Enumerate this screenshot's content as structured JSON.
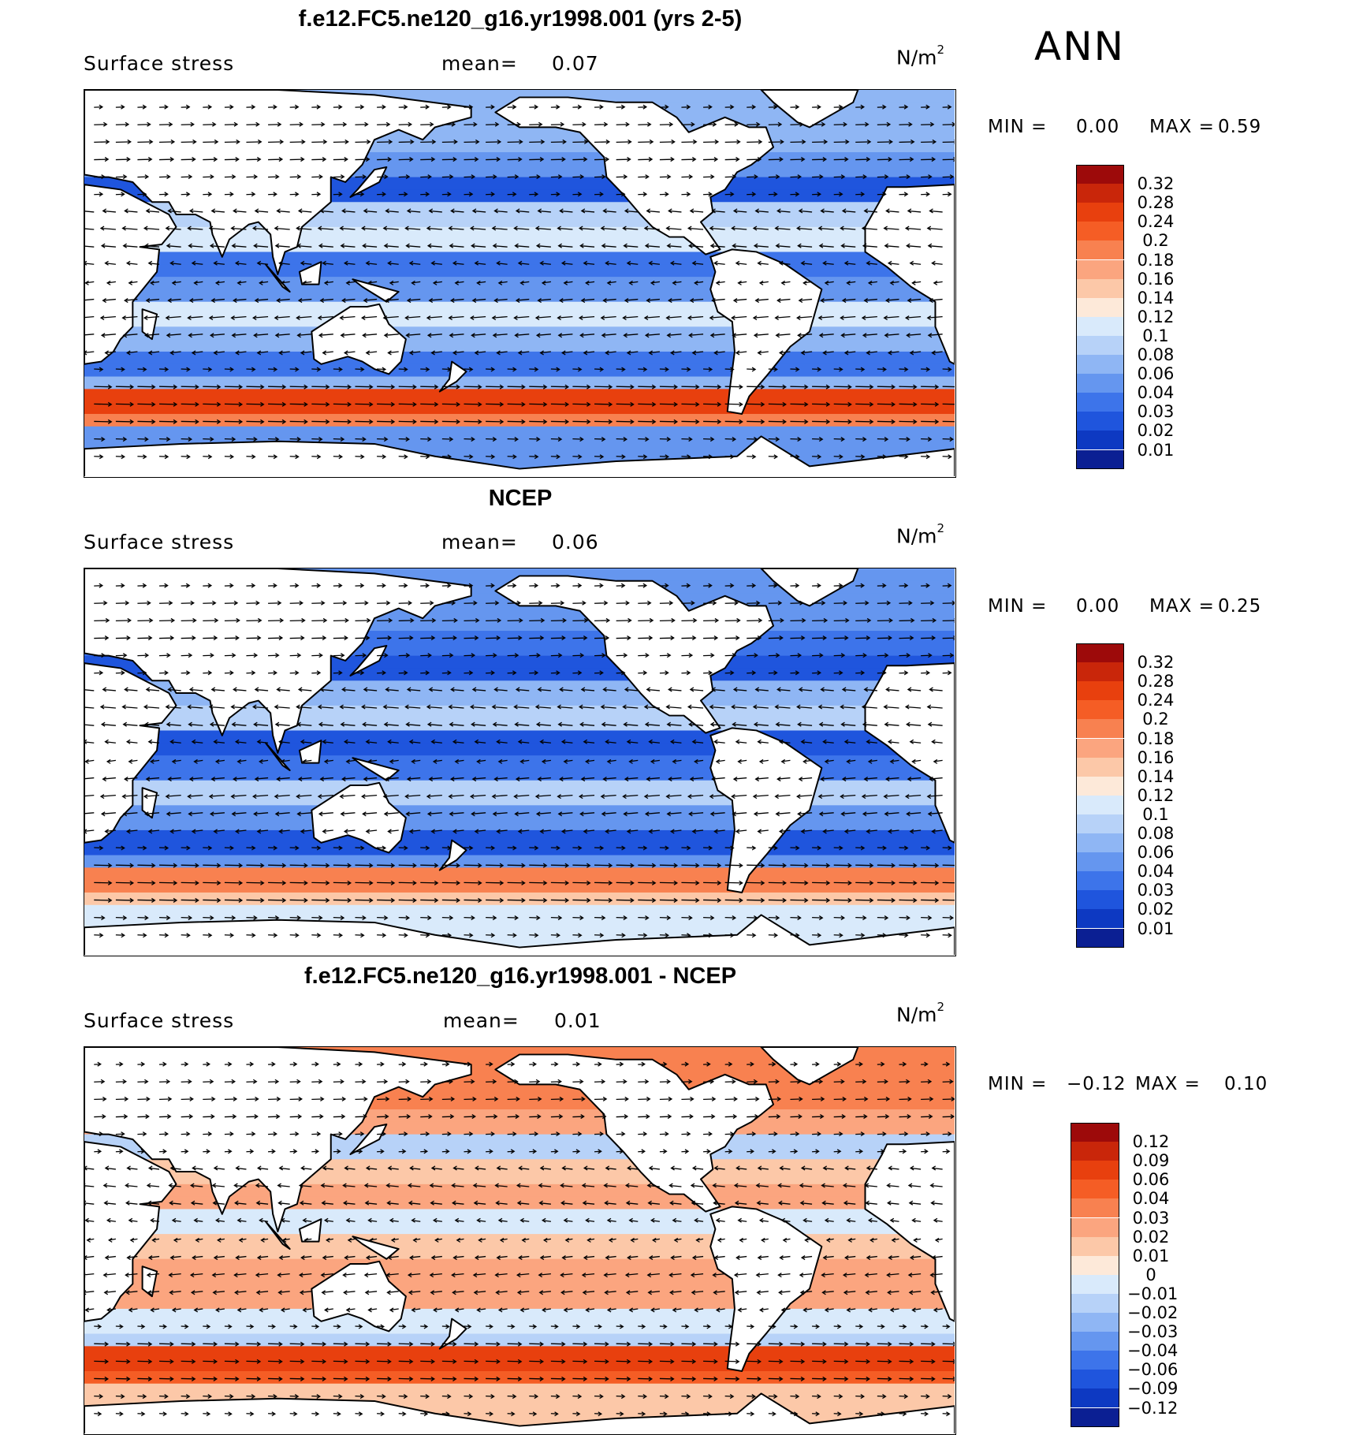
{
  "season": "ANN",
  "colors": {
    "warm": [
      "#fde9d9",
      "#fcc8a8",
      "#fba57f",
      "#f88150",
      "#f55d25",
      "#e8400e",
      "#c9260a",
      "#9d0a0a"
    ],
    "cool": [
      "#d9eafb",
      "#b7d2f8",
      "#8fb6f4",
      "#6596ef",
      "#3d74ea",
      "#1f55dd",
      "#0d39c2",
      "#0b1f93"
    ],
    "land": "#ffffff",
    "coast": "#000000"
  },
  "panels": [
    {
      "title": "f.e12.FC5.ne120_g16.yr1998.001 (yrs 2-5)",
      "variable": "Surface stress",
      "mean_label": "mean=",
      "mean_value": "0.07",
      "units_base": "N/m",
      "units_exp": "2",
      "min_label": "MIN =",
      "min_value": "0.00",
      "max_label": "MAX =",
      "max_value": "0.59",
      "colorbar": {
        "labels": [
          "0.32",
          "0.28",
          "0.24",
          "0.2",
          "0.18",
          "0.16",
          "0.14",
          "0.12",
          "0.1",
          "0.08",
          "0.06",
          "0.04",
          "0.03",
          "0.02",
          "0.01"
        ],
        "colors": [
          "#9d0a0a",
          "#c9260a",
          "#e8400e",
          "#f55d25",
          "#f88150",
          "#fba57f",
          "#fcc8a8",
          "#fde9d9",
          "#d9eafb",
          "#b7d2f8",
          "#8fb6f4",
          "#6596ef",
          "#3d74ea",
          "#1f55dd",
          "#0d39c2",
          "#0b1f93"
        ]
      }
    },
    {
      "title": "NCEP",
      "variable": "Surface stress",
      "mean_label": "mean=",
      "mean_value": "0.06",
      "units_base": "N/m",
      "units_exp": "2",
      "min_label": "MIN =",
      "min_value": "0.00",
      "max_label": "MAX =",
      "max_value": "0.25",
      "colorbar": {
        "labels": [
          "0.32",
          "0.28",
          "0.24",
          "0.2",
          "0.18",
          "0.16",
          "0.14",
          "0.12",
          "0.1",
          "0.08",
          "0.06",
          "0.04",
          "0.03",
          "0.02",
          "0.01"
        ],
        "colors": [
          "#9d0a0a",
          "#c9260a",
          "#e8400e",
          "#f55d25",
          "#f88150",
          "#fba57f",
          "#fcc8a8",
          "#fde9d9",
          "#d9eafb",
          "#b7d2f8",
          "#8fb6f4",
          "#6596ef",
          "#3d74ea",
          "#1f55dd",
          "#0d39c2",
          "#0b1f93"
        ]
      }
    },
    {
      "title": "f.e12.FC5.ne120_g16.yr1998.001 - NCEP",
      "variable": "Surface stress",
      "mean_label": "mean=",
      "mean_value": "0.01",
      "units_base": "N/m",
      "units_exp": "2",
      "min_label": "MIN =",
      "min_value": "−0.12",
      "max_label": "MAX =",
      "max_value": "0.10",
      "colorbar": {
        "labels": [
          "0.12",
          "0.09",
          "0.06",
          "0.04",
          "0.03",
          "0.02",
          "0.01",
          "0",
          "−0.01",
          "−0.02",
          "−0.03",
          "−0.04",
          "−0.06",
          "−0.09",
          "−0.12"
        ],
        "colors": [
          "#9d0a0a",
          "#c9260a",
          "#e8400e",
          "#f55d25",
          "#f88150",
          "#fba57f",
          "#fcc8a8",
          "#fde9d9",
          "#d9eafb",
          "#b7d2f8",
          "#8fb6f4",
          "#6596ef",
          "#3d74ea",
          "#1f55dd",
          "#0d39c2",
          "#0b1f93"
        ]
      }
    }
  ],
  "chart_data": [
    {
      "type": "heatmap",
      "title": "f.e12.FC5.ne120_g16.yr1998.001 (yrs 2-5)",
      "variable": "Surface stress",
      "units": "N/m2",
      "season": "ANN",
      "mean": 0.07,
      "min": 0.0,
      "max": 0.59,
      "levels": [
        0.01,
        0.02,
        0.03,
        0.04,
        0.06,
        0.08,
        0.1,
        0.12,
        0.14,
        0.16,
        0.18,
        0.2,
        0.24,
        0.28,
        0.32
      ],
      "overlay": "wind stress vectors",
      "zonal_bands": [
        {
          "lat": 55,
          "value": 0.06
        },
        {
          "lat": 45,
          "value": 0.04
        },
        {
          "lat": 35,
          "value": 0.02
        },
        {
          "lat": 25,
          "value": 0.08
        },
        {
          "lat": 15,
          "value": 0.1
        },
        {
          "lat": 5,
          "value": 0.03
        },
        {
          "lat": -5,
          "value": 0.04
        },
        {
          "lat": -15,
          "value": 0.1
        },
        {
          "lat": -25,
          "value": 0.06
        },
        {
          "lat": -35,
          "value": 0.03
        },
        {
          "lat": -42,
          "value": 0.06
        },
        {
          "lat": -50,
          "value": 0.24
        },
        {
          "lat": -58,
          "value": 0.18
        },
        {
          "lat": -65,
          "value": 0.04
        }
      ]
    },
    {
      "type": "heatmap",
      "title": "NCEP",
      "variable": "Surface stress",
      "units": "N/m2",
      "season": "ANN",
      "mean": 0.06,
      "min": 0.0,
      "max": 0.25,
      "levels": [
        0.01,
        0.02,
        0.03,
        0.04,
        0.06,
        0.08,
        0.1,
        0.12,
        0.14,
        0.16,
        0.18,
        0.2,
        0.24,
        0.28,
        0.32
      ],
      "overlay": "wind stress vectors",
      "zonal_bands": [
        {
          "lat": 55,
          "value": 0.04
        },
        {
          "lat": 45,
          "value": 0.03
        },
        {
          "lat": 35,
          "value": 0.02
        },
        {
          "lat": 25,
          "value": 0.06
        },
        {
          "lat": 15,
          "value": 0.08
        },
        {
          "lat": 5,
          "value": 0.02
        },
        {
          "lat": -5,
          "value": 0.03
        },
        {
          "lat": -15,
          "value": 0.08
        },
        {
          "lat": -25,
          "value": 0.04
        },
        {
          "lat": -35,
          "value": 0.02
        },
        {
          "lat": -42,
          "value": 0.04
        },
        {
          "lat": -50,
          "value": 0.18
        },
        {
          "lat": -58,
          "value": 0.14
        },
        {
          "lat": -65,
          "value": 0.1
        }
      ]
    },
    {
      "type": "heatmap",
      "title": "f.e12.FC5.ne120_g16.yr1998.001 - NCEP",
      "variable": "Surface stress",
      "units": "N/m2",
      "season": "ANN",
      "mean": 0.01,
      "min": -0.12,
      "max": 0.1,
      "levels": [
        -0.12,
        -0.09,
        -0.06,
        -0.04,
        -0.03,
        -0.02,
        -0.01,
        0,
        0.01,
        0.02,
        0.03,
        0.04,
        0.06,
        0.09,
        0.12
      ],
      "overlay": "wind stress difference vectors",
      "zonal_bands": [
        {
          "lat": 55,
          "value": 0.03
        },
        {
          "lat": 45,
          "value": 0.02
        },
        {
          "lat": 35,
          "value": -0.02
        },
        {
          "lat": 25,
          "value": 0.01
        },
        {
          "lat": 15,
          "value": 0.02
        },
        {
          "lat": 5,
          "value": -0.01
        },
        {
          "lat": -5,
          "value": 0.01
        },
        {
          "lat": -15,
          "value": 0.02
        },
        {
          "lat": -25,
          "value": 0.02
        },
        {
          "lat": -35,
          "value": -0.01
        },
        {
          "lat": -42,
          "value": -0.02
        },
        {
          "lat": -50,
          "value": 0.06
        },
        {
          "lat": -58,
          "value": 0.04
        },
        {
          "lat": -65,
          "value": 0.01
        }
      ]
    }
  ]
}
